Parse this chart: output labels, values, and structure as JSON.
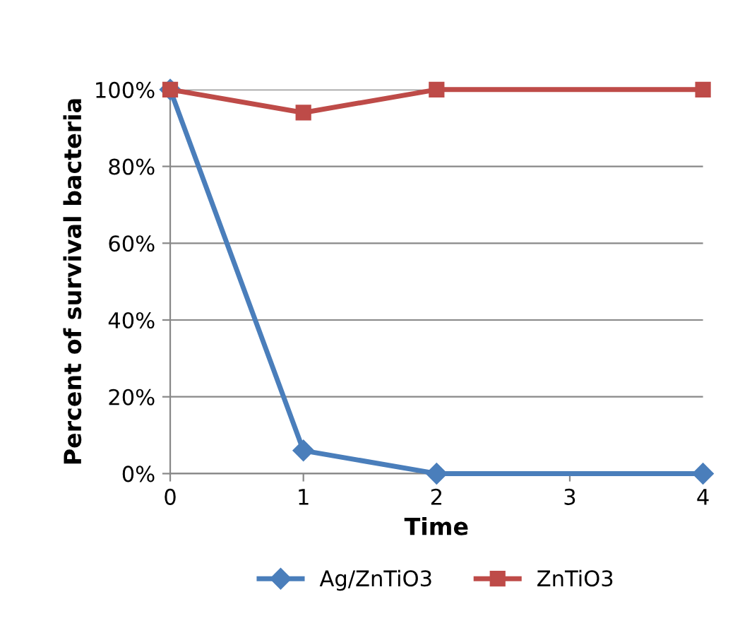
{
  "chart_data": {
    "type": "line",
    "xlabel": "Time",
    "ylabel": "Percent of survival bacteria",
    "xlim": [
      0,
      4
    ],
    "xticks": [
      0,
      1,
      2,
      3,
      4
    ],
    "ylim": [
      0,
      100
    ],
    "yticks": [
      {
        "value": 0,
        "label": "0%"
      },
      {
        "value": 20,
        "label": "20%"
      },
      {
        "value": 40,
        "label": "40%"
      },
      {
        "value": 60,
        "label": "60%"
      },
      {
        "value": 80,
        "label": "80%"
      },
      {
        "value": 100,
        "label": "100%"
      }
    ],
    "grid": "y",
    "legend": "bottom",
    "line_style": "solid",
    "series": [
      {
        "name": "Ag/ZnTiO3",
        "color": "#4a7ebb",
        "marker": "diamond",
        "x": [
          0,
          1,
          2,
          4
        ],
        "values": [
          100,
          6,
          0,
          0
        ]
      },
      {
        "name": "ZnTiO3",
        "color": "#be4b48",
        "marker": "square",
        "x": [
          0,
          1,
          2,
          4
        ],
        "values": [
          100,
          94,
          100,
          100
        ]
      }
    ]
  }
}
